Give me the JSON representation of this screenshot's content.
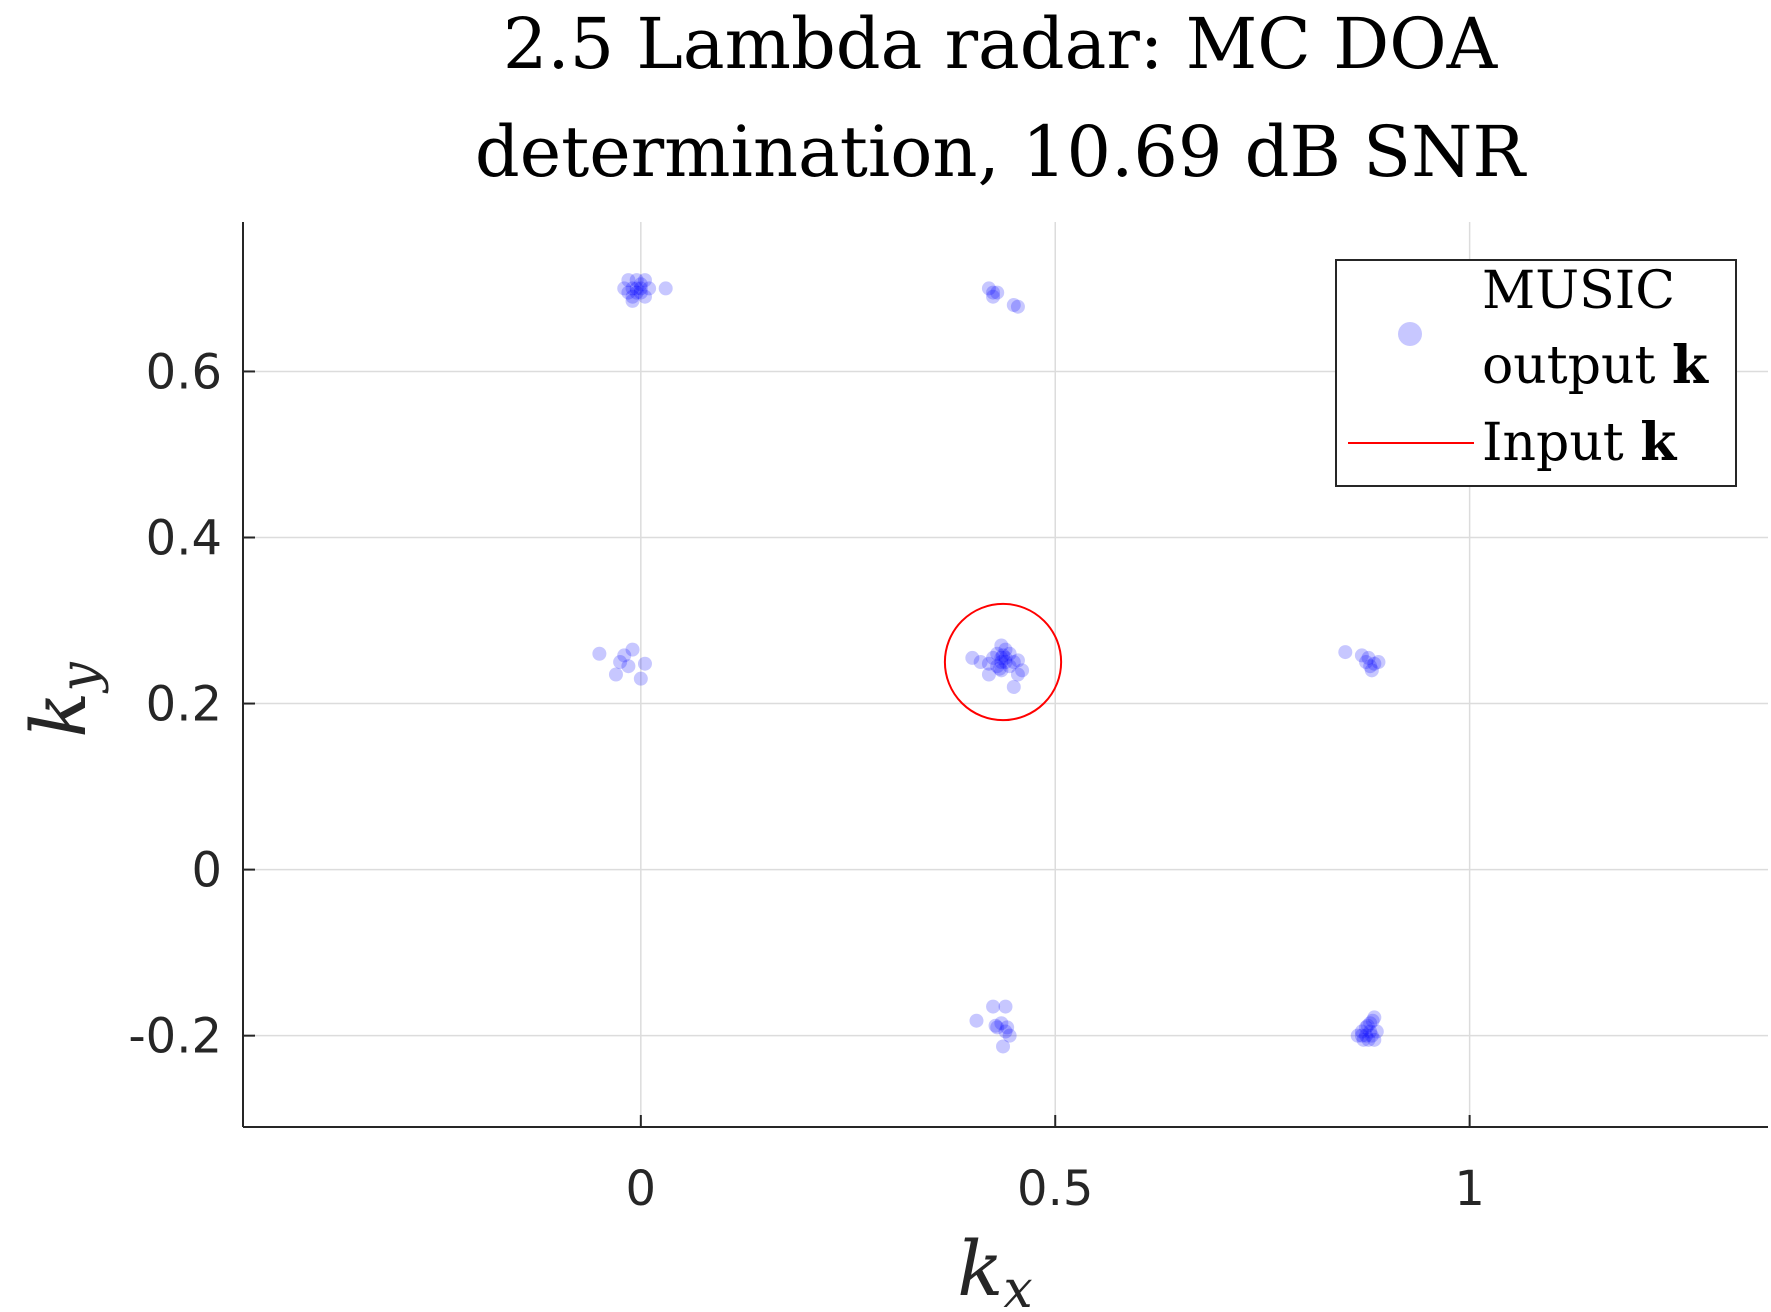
{
  "chart_data": {
    "type": "scatter",
    "title": [
      "2.5 Lambda radar: MC DOA",
      "determination, 10.69 dB SNR"
    ],
    "xlabel": "k",
    "xlabel_sub": "x",
    "ylabel": "k",
    "ylabel_sub": "y",
    "xlim": [
      -0.48,
      1.36
    ],
    "ylim": [
      -0.31,
      0.78
    ],
    "xticks": [
      0,
      0.5,
      1
    ],
    "xtick_labels": [
      "0",
      "0.5",
      "1"
    ],
    "yticks": [
      -0.2,
      0,
      0.2,
      0.4,
      0.6
    ],
    "ytick_labels": [
      "-0.2",
      "0",
      "0.2",
      "0.4",
      "0.6"
    ],
    "grid": true,
    "legend_position": "top-right",
    "legend": [
      {
        "label_lines": [
          "MUSIC",
          "output"
        ],
        "bold_suffix": "k",
        "marker": "dot"
      },
      {
        "label": "Input",
        "bold_suffix": "k",
        "marker": "line"
      }
    ],
    "series": [
      {
        "name": "MUSIC output k",
        "color": "#0000ff",
        "opacity": 0.22,
        "points": [
          [
            -0.01,
            0.7
          ],
          [
            0.0,
            0.705
          ],
          [
            -0.015,
            0.695
          ],
          [
            0.005,
            0.69
          ],
          [
            -0.005,
            0.71
          ],
          [
            -0.01,
            0.685
          ],
          [
            0.0,
            0.7
          ],
          [
            -0.02,
            0.7
          ],
          [
            0.01,
            0.7
          ],
          [
            -0.005,
            0.695
          ],
          [
            0.005,
            0.71
          ],
          [
            -0.015,
            0.71
          ],
          [
            0.03,
            0.7
          ],
          [
            -0.01,
            0.69
          ],
          [
            0.0,
            0.695
          ],
          [
            -0.005,
            0.7
          ],
          [
            0.42,
            0.7
          ],
          [
            0.425,
            0.69
          ],
          [
            0.43,
            0.695
          ],
          [
            0.45,
            0.68
          ],
          [
            0.455,
            0.678
          ],
          [
            0.425,
            0.695
          ],
          [
            -0.05,
            0.26
          ],
          [
            -0.02,
            0.258
          ],
          [
            -0.01,
            0.265
          ],
          [
            -0.03,
            0.235
          ],
          [
            -0.015,
            0.245
          ],
          [
            0.005,
            0.248
          ],
          [
            0.0,
            0.23
          ],
          [
            -0.025,
            0.25
          ],
          [
            0.435,
            0.25
          ],
          [
            0.44,
            0.255
          ],
          [
            0.43,
            0.26
          ],
          [
            0.445,
            0.245
          ],
          [
            0.425,
            0.255
          ],
          [
            0.45,
            0.25
          ],
          [
            0.435,
            0.24
          ],
          [
            0.44,
            0.265
          ],
          [
            0.43,
            0.245
          ],
          [
            0.445,
            0.26
          ],
          [
            0.42,
            0.248
          ],
          [
            0.455,
            0.252
          ],
          [
            0.437,
            0.258
          ],
          [
            0.433,
            0.242
          ],
          [
            0.44,
            0.25
          ],
          [
            0.435,
            0.255
          ],
          [
            0.41,
            0.25
          ],
          [
            0.4,
            0.255
          ],
          [
            0.46,
            0.24
          ],
          [
            0.455,
            0.235
          ],
          [
            0.45,
            0.22
          ],
          [
            0.42,
            0.235
          ],
          [
            0.435,
            0.27
          ],
          [
            0.85,
            0.262
          ],
          [
            0.87,
            0.258
          ],
          [
            0.875,
            0.25
          ],
          [
            0.88,
            0.245
          ],
          [
            0.885,
            0.248
          ],
          [
            0.89,
            0.25
          ],
          [
            0.878,
            0.255
          ],
          [
            0.882,
            0.24
          ],
          [
            0.425,
            -0.165
          ],
          [
            0.44,
            -0.165
          ],
          [
            0.405,
            -0.182
          ],
          [
            0.43,
            -0.19
          ],
          [
            0.435,
            -0.185
          ],
          [
            0.44,
            -0.195
          ],
          [
            0.445,
            -0.2
          ],
          [
            0.437,
            -0.213
          ],
          [
            0.428,
            -0.188
          ],
          [
            0.442,
            -0.19
          ],
          [
            0.865,
            -0.2
          ],
          [
            0.87,
            -0.195
          ],
          [
            0.875,
            -0.19
          ],
          [
            0.88,
            -0.185
          ],
          [
            0.885,
            -0.178
          ],
          [
            0.882,
            -0.2
          ],
          [
            0.878,
            -0.205
          ],
          [
            0.872,
            -0.205
          ],
          [
            0.888,
            -0.195
          ],
          [
            0.875,
            -0.2
          ],
          [
            0.88,
            -0.195
          ],
          [
            0.885,
            -0.205
          ],
          [
            0.87,
            -0.2
          ],
          [
            0.877,
            -0.188
          ],
          [
            0.883,
            -0.182
          ]
        ]
      },
      {
        "name": "Input k",
        "color": "#ff0000",
        "shape": "circle",
        "center": [
          0.437,
          0.25
        ],
        "radius": 0.07
      }
    ]
  }
}
